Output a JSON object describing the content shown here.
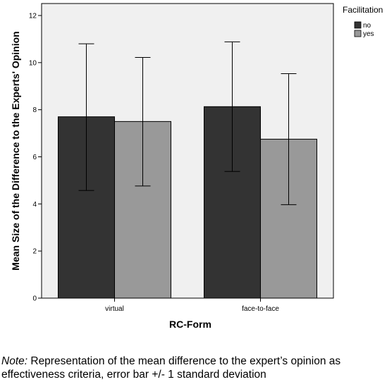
{
  "chart_data": {
    "type": "bar",
    "title": "",
    "xlabel": "RC-Form",
    "ylabel": "Mean Size of the Difference to the Experts' Opinion",
    "categories": [
      "virtual",
      "face-to-face"
    ],
    "ylim": [
      0,
      12
    ],
    "yticks": [
      0,
      2,
      4,
      6,
      8,
      10,
      12
    ],
    "ytick_labels": [
      "0",
      "2",
      "4",
      "6",
      "8",
      "10",
      "12"
    ],
    "legend": {
      "title": "Facilitation",
      "placement": "top-right outside"
    },
    "series": [
      {
        "name": "no",
        "color": "#333333",
        "values": [
          7.7,
          8.13
        ],
        "error_low": [
          4.57,
          5.38
        ],
        "error_high": [
          10.8,
          10.88
        ]
      },
      {
        "name": "yes",
        "color": "#999999",
        "values": [
          7.5,
          6.75
        ],
        "error_low": [
          4.76,
          3.97
        ],
        "error_high": [
          10.22,
          9.53
        ]
      }
    ],
    "grid": false,
    "plot_background": "#f0f0f0"
  },
  "note": {
    "label": "Note:",
    "text": " Representation of the mean difference to the expert’s opinion as effectiveness criteria, error bar +/- 1 standard deviation"
  }
}
